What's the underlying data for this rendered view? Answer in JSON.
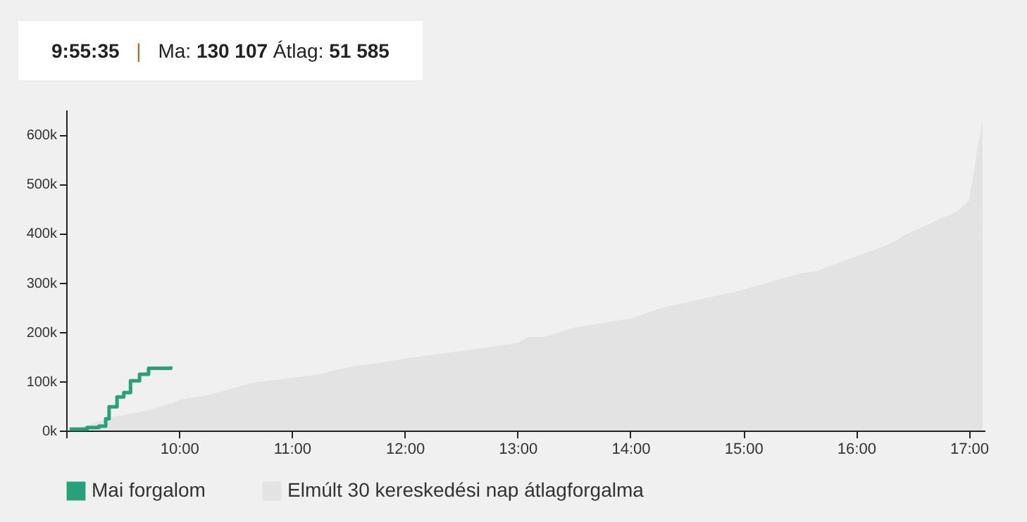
{
  "chart_data": {
    "type": "area",
    "title": "9:55:35 | Ma: 130 107 Átlag: 51 585",
    "xlim": [
      9,
      17.14
    ],
    "xticks": [
      {
        "value": 9,
        "label": null
      },
      {
        "value": 10,
        "label": "10:00"
      },
      {
        "value": 11,
        "label": "11:00"
      },
      {
        "value": 12,
        "label": "12:00"
      },
      {
        "value": 13,
        "label": "13:00"
      },
      {
        "value": 14,
        "label": "14:00"
      },
      {
        "value": 15,
        "label": "15:00"
      },
      {
        "value": 16,
        "label": "16:00"
      },
      {
        "value": 17,
        "label": "17:00"
      }
    ],
    "ylim": [
      0,
      650000
    ],
    "yticks": [
      {
        "value": 0,
        "label": "0k"
      },
      {
        "value": 100000,
        "label": "100k"
      },
      {
        "value": 200000,
        "label": "200k"
      },
      {
        "value": 300000,
        "label": "300k"
      },
      {
        "value": 400000,
        "label": "400k"
      },
      {
        "value": 500000,
        "label": "500k"
      },
      {
        "value": 600000,
        "label": "600k"
      }
    ],
    "series": [
      {
        "name": "Mai forgalom",
        "type": "step",
        "color": "#26a17b",
        "x": [
          9.03,
          9.185,
          9.29,
          9.35,
          9.38,
          9.45,
          9.51,
          9.57,
          9.65,
          9.73,
          9.926
        ],
        "values": [
          3000,
          6000,
          9000,
          24000,
          48000,
          68000,
          77000,
          101000,
          114000,
          126000,
          130000
        ]
      },
      {
        "name": "Elmúlt 30 kereskedési nap átlagforgalma",
        "color": "#e3e3e3",
        "x": [
          9.0,
          9.15,
          9.4,
          9.73,
          9.93,
          10.0,
          10.28,
          10.65,
          11.0,
          11.25,
          11.53,
          11.8,
          12.0,
          12.59,
          13.0,
          13.1,
          13.24,
          13.51,
          14.0,
          14.3,
          14.58,
          15.0,
          15.51,
          15.65,
          16.0,
          16.29,
          16.43,
          16.71,
          16.9,
          17.0,
          17.12
        ],
        "values": [
          0,
          8000,
          27000,
          41000,
          55000,
          62000,
          73000,
          97000,
          107000,
          114000,
          130000,
          138000,
          146000,
          164000,
          178000,
          190000,
          190000,
          209000,
          227000,
          250000,
          264000,
          285000,
          319000,
          323000,
          353000,
          377000,
          396000,
          425000,
          445000,
          466000,
          630000
        ]
      }
    ],
    "grid": false,
    "legend": "bottom"
  }
}
